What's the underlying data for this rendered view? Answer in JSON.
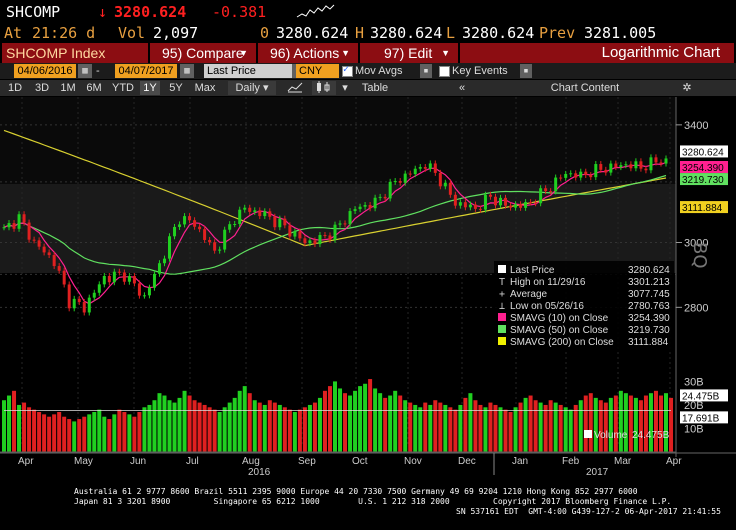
{
  "header": {
    "ticker": "SHCOMP",
    "arrow": "↓",
    "last_price": "3280.624",
    "change": "-0.381",
    "at_label": "At",
    "time": "21:26 d",
    "vol_label": "Vol",
    "volume": "2,097",
    "o_label": "0",
    "open": "3280.624",
    "h_label": "H",
    "high": "3280.624",
    "l_label": "L",
    "low": "3280.624",
    "prev_label": "Prev",
    "prev": "3281.005"
  },
  "toolbar": {
    "security": "SHCOMP Index",
    "compare": "95) Compare",
    "actions": "96) Actions",
    "edit": "97) Edit",
    "chart_title": "Logarithmic Chart"
  },
  "controls": {
    "start_date": "04/06/2016",
    "end_date": "04/07/2017",
    "field": "Last Price",
    "currency": "CNY",
    "mov_avgs_label": "Mov Avgs",
    "key_events_label": "Key Events"
  },
  "periods": {
    "items": [
      "1D",
      "3D",
      "1M",
      "6M",
      "YTD",
      "1Y",
      "5Y",
      "Max"
    ],
    "selected": "1Y",
    "frequency": "Daily",
    "table_label": "Table",
    "chart_content_label": "Chart Content"
  },
  "chart_data": {
    "type": "line",
    "scale": "log",
    "price_axis": {
      "ticks": [
        "3400",
        "3000",
        "2800"
      ],
      "range": [
        2690,
        3480
      ]
    },
    "volume_axis": {
      "ticks": [
        "30B",
        "20B",
        "10B"
      ],
      "range": [
        0,
        34
      ]
    },
    "x_months": [
      "Apr",
      "May",
      "Jun",
      "Jul",
      "Aug",
      "Sep",
      "Oct",
      "Nov",
      "Dec",
      "Jan",
      "Feb",
      "Mar",
      "Apr"
    ],
    "x_years": [
      "2016",
      "2017"
    ],
    "price_anchors": [
      [
        0,
        3040
      ],
      [
        3,
        3080
      ],
      [
        6,
        3000
      ],
      [
        10,
        2940
      ],
      [
        13,
        2820
      ],
      [
        16,
        2800
      ],
      [
        20,
        2890
      ],
      [
        24,
        2900
      ],
      [
        28,
        2830
      ],
      [
        31,
        2930
      ],
      [
        35,
        3080
      ],
      [
        38,
        3060
      ],
      [
        42,
        2970
      ],
      [
        46,
        3080
      ],
      [
        48,
        3110
      ],
      [
        52,
        3090
      ],
      [
        56,
        3050
      ],
      [
        60,
        3000
      ],
      [
        63,
        3010
      ],
      [
        66,
        3040
      ],
      [
        70,
        3110
      ],
      [
        74,
        3130
      ],
      [
        78,
        3200
      ],
      [
        82,
        3240
      ],
      [
        84,
        3260
      ],
      [
        86,
        3230
      ],
      [
        90,
        3130
      ],
      [
        94,
        3110
      ],
      [
        97,
        3150
      ],
      [
        100,
        3120
      ],
      [
        104,
        3120
      ],
      [
        108,
        3170
      ],
      [
        112,
        3230
      ],
      [
        115,
        3220
      ],
      [
        118,
        3240
      ],
      [
        121,
        3250
      ],
      [
        124,
        3260
      ],
      [
        127,
        3250
      ],
      [
        130,
        3270
      ],
      [
        132,
        3280.624
      ]
    ],
    "volume_bars": [
      22,
      24,
      26,
      20,
      21,
      19,
      18,
      17,
      16,
      15,
      16,
      17,
      15,
      14,
      13,
      14,
      15,
      16,
      17,
      18,
      15,
      14,
      16,
      18,
      17,
      16,
      15,
      17,
      19,
      20,
      22,
      25,
      24,
      22,
      21,
      23,
      26,
      24,
      22,
      21,
      20,
      19,
      18,
      17,
      19,
      21,
      23,
      26,
      28,
      25,
      22,
      21,
      20,
      22,
      21,
      20,
      19,
      18,
      17,
      18,
      19,
      20,
      21,
      23,
      26,
      28,
      30,
      27,
      25,
      24,
      26,
      28,
      29,
      31,
      27,
      25,
      23,
      24,
      26,
      24,
      22,
      21,
      20,
      19,
      21,
      20,
      22,
      21,
      20,
      19,
      18,
      20,
      23,
      25,
      22,
      20,
      19,
      21,
      20,
      19,
      18,
      17,
      19,
      21,
      23,
      24,
      22,
      21,
      20,
      22,
      21,
      20,
      19,
      18,
      20,
      22,
      24,
      25,
      23,
      22,
      21,
      23,
      24,
      26,
      25,
      24,
      23,
      22,
      24,
      25,
      26,
      24,
      25,
      23
    ],
    "annotations": {
      "last": "3280.624",
      "sma10": "3254.390",
      "sma50": "3219.730",
      "sma200": "3111.884",
      "vol_last": "24.475B",
      "vol_avg": "17.691B"
    },
    "legend": {
      "items": [
        {
          "label": "Last Price",
          "value": "3280.624",
          "swatch": "#ffffff"
        },
        {
          "label": "High on 11/29/16",
          "value": "3301.213",
          "swatch": "none",
          "glyph": "T"
        },
        {
          "label": "Average",
          "value": "3077.745",
          "swatch": "none",
          "glyph": "+"
        },
        {
          "label": "Low on 05/26/16",
          "value": "2780.763",
          "swatch": "none",
          "glyph": "⊥"
        },
        {
          "label": "SMAVG (10) on Close",
          "value": "3254.390",
          "swatch": "#ff2090"
        },
        {
          "label": "SMAVG (50) on Close",
          "value": "3219.730",
          "swatch": "#60e060"
        },
        {
          "label": "SMAVG (200) on Close",
          "value": "3111.884",
          "swatch": "#f0f000"
        }
      ],
      "volume_label": "Volume",
      "volume_value": "24.475B"
    },
    "logo": "BQ",
    "colors": {
      "up": "#20d020",
      "down": "#e02020",
      "sma10": "#ff2090",
      "sma50": "#60e060",
      "sma200": "#d8d030",
      "last": "#ffffff"
    }
  },
  "footer": {
    "line1": "Australia 61 2 9777 8600 Brazil 5511 2395 9000 Europe 44 20 7330 7500 Germany 49 69 9204 1210 Hong Kong 852 2977 6000",
    "line2": "Japan 81 3 3201 8900         Singapore 65 6212 1000        U.S. 1 212 318 2000         Copyright 2017 Bloomberg Finance L.P.",
    "line3": "SN 537161 EDT  GMT-4:00 G439-127-2 06-Apr-2017 21:41:55"
  }
}
